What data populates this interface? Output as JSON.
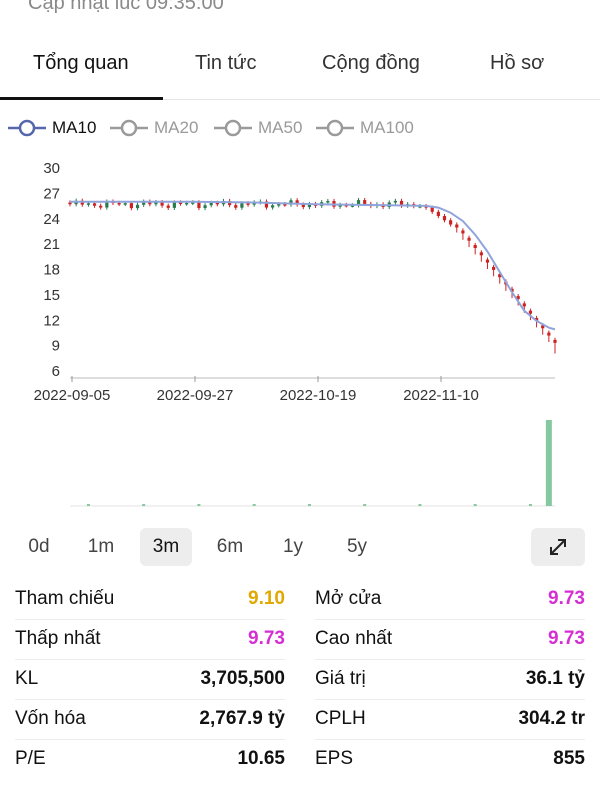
{
  "header": {
    "updated_text": "Cập nhật lúc 09:35:00"
  },
  "tabs": [
    {
      "label": "Tổng quan",
      "active": true
    },
    {
      "label": "Tin tức"
    },
    {
      "label": "Cộng đồng"
    },
    {
      "label": "Hồ sơ"
    }
  ],
  "legend": [
    {
      "label": "MA10",
      "active": true,
      "color": "#5566aa"
    },
    {
      "label": "MA20",
      "active": false,
      "color": "#9a9a9a"
    },
    {
      "label": "MA50",
      "active": false,
      "color": "#9a9a9a"
    },
    {
      "label": "MA100",
      "active": false,
      "color": "#9a9a9a"
    }
  ],
  "chart_data": {
    "type": "candlestick",
    "y_ticks": [
      "30",
      "27",
      "24",
      "21",
      "18",
      "15",
      "12",
      "9",
      "6"
    ],
    "x_ticks": [
      "2022-09-05",
      "2022-09-27",
      "2022-10-19",
      "2022-11-10"
    ],
    "ylim": [
      6,
      30
    ],
    "colors": {
      "up": "#2a7a4e",
      "down": "#cc2222",
      "ma": "#8fa4dc",
      "volume": "#86c9a0"
    },
    "ma10": [
      [
        0,
        25.9
      ],
      [
        10,
        25.9
      ],
      [
        20,
        25.9
      ],
      [
        30,
        25.8
      ],
      [
        40,
        25.6
      ],
      [
        50,
        25.5
      ],
      [
        58,
        25.4
      ],
      [
        60,
        25.2
      ],
      [
        62,
        24.6
      ],
      [
        64,
        23.6
      ],
      [
        66,
        22.0
      ],
      [
        68,
        20.0
      ],
      [
        70,
        17.6
      ],
      [
        72,
        15.2
      ],
      [
        74,
        13.0
      ],
      [
        76,
        11.8
      ],
      [
        78,
        11.0
      ],
      [
        79,
        10.8
      ]
    ],
    "candles_note": "approx daily candles",
    "volume_spike_index": 78
  },
  "ranges": [
    {
      "label": "0d"
    },
    {
      "label": "1m"
    },
    {
      "label": "3m",
      "active": true
    },
    {
      "label": "6m"
    },
    {
      "label": "1y"
    },
    {
      "label": "5y"
    }
  ],
  "stats": {
    "rows": [
      {
        "left_label": "Tham chiếu",
        "left_value": "9.10",
        "left_color": "#e0a800",
        "right_label": "Mở cửa",
        "right_value": "9.73",
        "right_color": "#d42fd4"
      },
      {
        "left_label": "Thấp nhất",
        "left_value": "9.73",
        "left_color": "#d42fd4",
        "right_label": "Cao nhất",
        "right_value": "9.73",
        "right_color": "#d42fd4"
      },
      {
        "left_label": "KL",
        "left_value": "3,705,500",
        "left_color": "#111111",
        "right_label": "Giá trị",
        "right_value": "36.1 tỷ",
        "right_color": "#111111"
      },
      {
        "left_label": "Vốn hóa",
        "left_value": "2,767.9 tỷ",
        "left_color": "#111111",
        "right_label": "CPLH",
        "right_value": "304.2 tr",
        "right_color": "#111111"
      },
      {
        "left_label": "P/E",
        "left_value": "10.65",
        "left_color": "#111111",
        "right_label": "EPS",
        "right_value": "855",
        "right_color": "#111111"
      }
    ]
  }
}
